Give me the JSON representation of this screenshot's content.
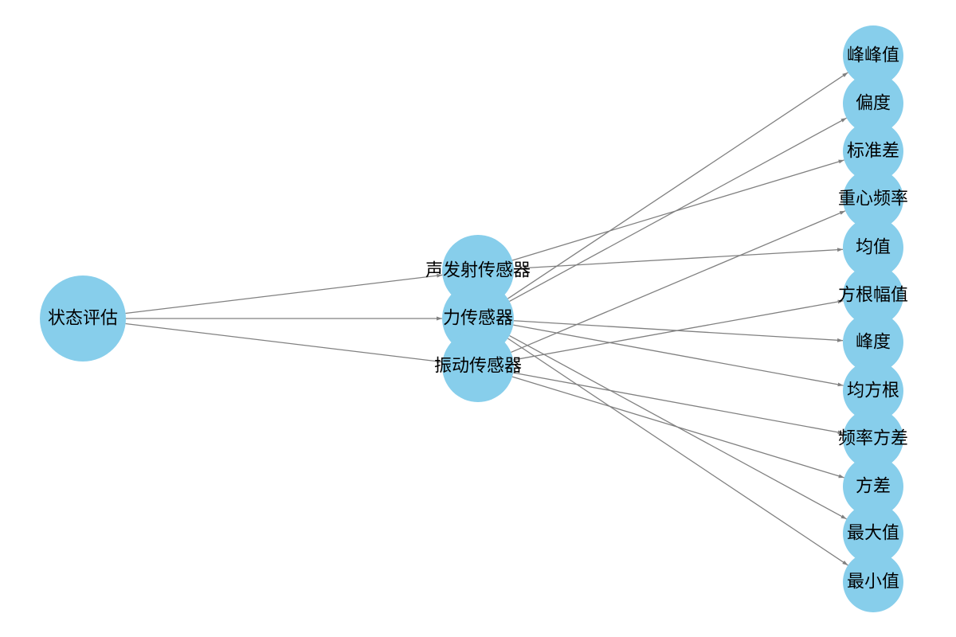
{
  "colors": {
    "node_fill": "#87CEEB",
    "edge_stroke": "#808080",
    "label_text": "#000000",
    "background": "#ffffff"
  },
  "nodes": [
    {
      "id": "root",
      "label": "状态评估"
    },
    {
      "id": "ae",
      "label": "声发射传感器"
    },
    {
      "id": "force",
      "label": "力传感器"
    },
    {
      "id": "vib",
      "label": "振动传感器"
    },
    {
      "id": "f_ptp",
      "label": "峰峰值"
    },
    {
      "id": "f_skew",
      "label": "偏度"
    },
    {
      "id": "f_std",
      "label": "标准差"
    },
    {
      "id": "f_cf",
      "label": "重心频率"
    },
    {
      "id": "f_mean",
      "label": "均值"
    },
    {
      "id": "f_sra",
      "label": "方根幅值"
    },
    {
      "id": "f_kurt",
      "label": "峰度"
    },
    {
      "id": "f_rms",
      "label": "均方根"
    },
    {
      "id": "f_fv",
      "label": "频率方差"
    },
    {
      "id": "f_var",
      "label": "方差"
    },
    {
      "id": "f_max",
      "label": "最大值"
    },
    {
      "id": "f_min",
      "label": "最小值"
    }
  ],
  "edges": [
    {
      "source": "root",
      "target": "ae"
    },
    {
      "source": "root",
      "target": "force"
    },
    {
      "source": "root",
      "target": "vib"
    },
    {
      "source": "ae",
      "target": "f_std"
    },
    {
      "source": "ae",
      "target": "f_mean"
    },
    {
      "source": "force",
      "target": "f_ptp"
    },
    {
      "source": "force",
      "target": "f_skew"
    },
    {
      "source": "force",
      "target": "f_kurt"
    },
    {
      "source": "force",
      "target": "f_rms"
    },
    {
      "source": "force",
      "target": "f_max"
    },
    {
      "source": "force",
      "target": "f_min"
    },
    {
      "source": "vib",
      "target": "f_cf"
    },
    {
      "source": "vib",
      "target": "f_sra"
    },
    {
      "source": "vib",
      "target": "f_fv"
    },
    {
      "source": "vib",
      "target": "f_var"
    }
  ]
}
